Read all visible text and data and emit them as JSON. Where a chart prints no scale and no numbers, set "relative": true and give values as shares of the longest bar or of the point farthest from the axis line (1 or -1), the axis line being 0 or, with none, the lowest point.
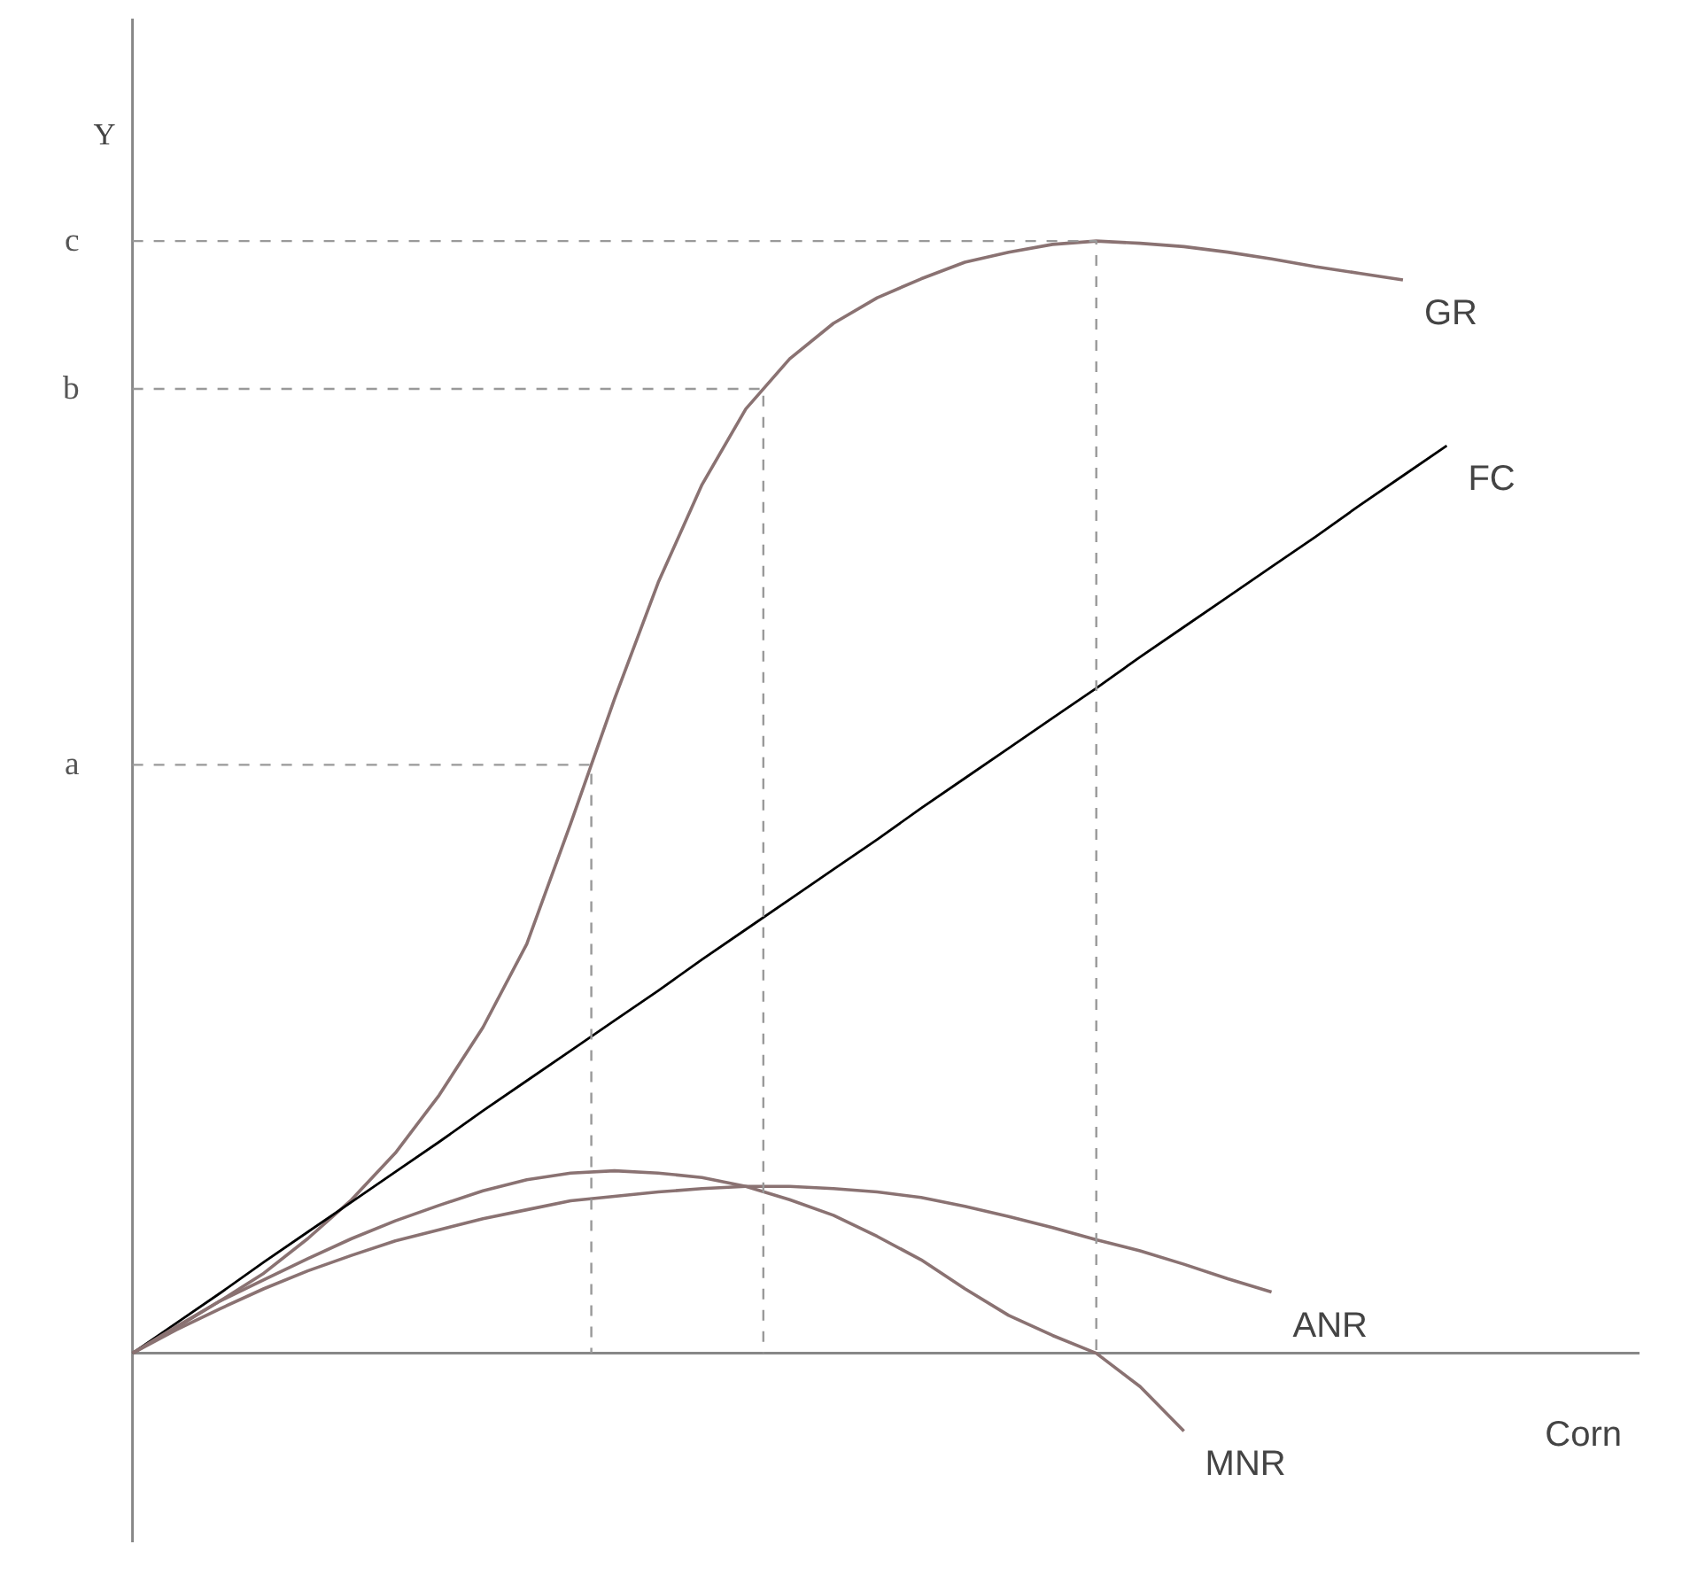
{
  "chart_data": {
    "type": "line",
    "relative": true,
    "xlabel": "Corn",
    "ylabel": "Y",
    "categories": [
      null,
      null,
      null,
      null,
      null,
      null,
      null,
      null,
      null,
      null,
      null,
      null,
      null,
      null,
      null,
      null,
      null,
      null,
      null,
      null,
      null,
      null,
      null,
      null,
      null,
      null,
      null,
      null,
      null,
      null,
      null
    ],
    "series": [
      {
        "name": "GR",
        "color": "#8a7272",
        "values": [
          0,
          0.023,
          0.047,
          0.072,
          0.103,
          0.138,
          0.18,
          0.232,
          0.293,
          0.368,
          0.476,
          0.588,
          0.693,
          0.781,
          0.849,
          0.894,
          0.926,
          0.949,
          0.966,
          0.981,
          0.99,
          0.997,
          1.0,
          0.998,
          0.995,
          0.99,
          0.984,
          0.977,
          0.971,
          0.965,
          null
        ]
      },
      {
        "name": "FC",
        "color": "#000000",
        "values": [
          0,
          0.027,
          0.054,
          0.082,
          0.109,
          0.136,
          0.163,
          0.19,
          0.218,
          0.245,
          0.272,
          0.299,
          0.326,
          0.354,
          0.381,
          0.408,
          0.435,
          0.462,
          0.49,
          0.517,
          0.544,
          0.571,
          0.598,
          0.626,
          0.653,
          0.68,
          0.707,
          0.734,
          0.762,
          0.789,
          0.816
        ]
      },
      {
        "name": "ANR",
        "color": "#8a7272",
        "values": [
          0,
          0.021,
          0.04,
          0.058,
          0.074,
          0.088,
          0.101,
          0.111,
          0.121,
          0.129,
          0.137,
          0.141,
          0.145,
          0.148,
          0.15,
          0.15,
          0.148,
          0.145,
          0.14,
          0.132,
          0.123,
          0.113,
          0.102,
          0.092,
          0.08,
          0.067,
          0.055,
          null,
          null,
          null,
          null
        ]
      },
      {
        "name": "MNR",
        "color": "#8a7272",
        "values": [
          0,
          0.024,
          0.047,
          0.066,
          0.085,
          0.103,
          0.119,
          0.133,
          0.146,
          0.156,
          0.162,
          0.164,
          0.162,
          0.158,
          0.15,
          0.138,
          0.124,
          0.105,
          0.084,
          0.058,
          0.034,
          0.016,
          0,
          -0.03,
          -0.07,
          null,
          null,
          null,
          null,
          null,
          null
        ]
      }
    ],
    "ref_lines": [
      {
        "axis": "y",
        "value": 0.529,
        "label": "a",
        "color": "#999999",
        "line_style": "dashed"
      },
      {
        "axis": "y",
        "value": 0.867,
        "label": "b",
        "color": "#999999",
        "line_style": "dashed"
      },
      {
        "axis": "y",
        "value": 1.0,
        "label": "c",
        "color": "#999999",
        "line_style": "dashed"
      }
    ],
    "legend": false
  }
}
